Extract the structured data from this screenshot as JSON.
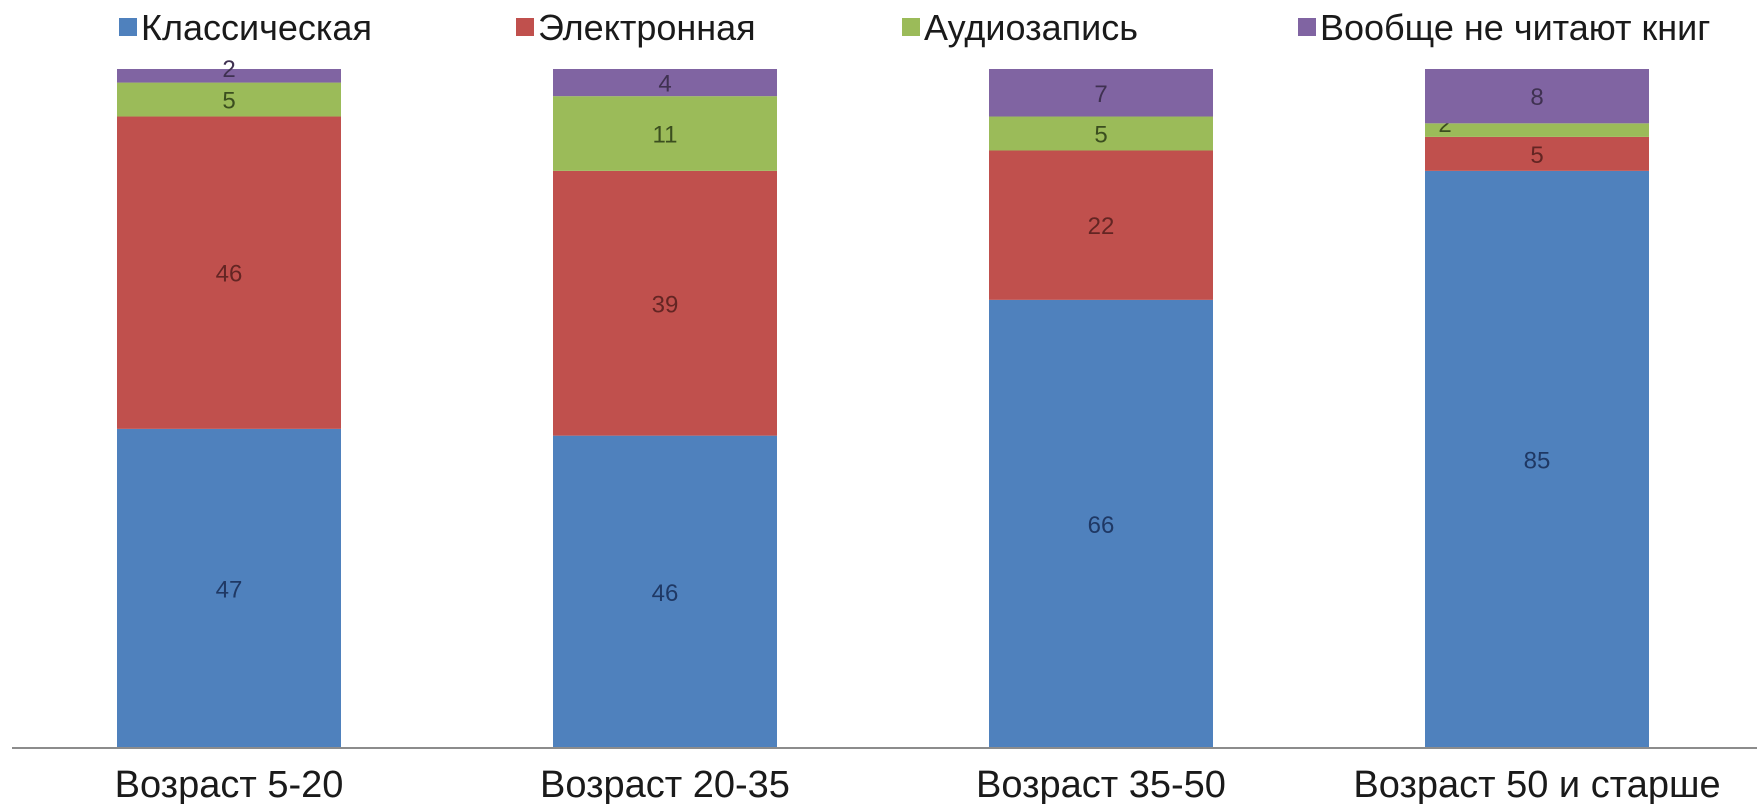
{
  "chart_data": {
    "type": "bar",
    "stacked": true,
    "percent_stacked": true,
    "categories": [
      "Возраст 5-20",
      "Возраст 20-35",
      "Возраст 35-50",
      "Возраст 50 и старше"
    ],
    "series": [
      {
        "name": "Классическая",
        "values": [
          47,
          46,
          66,
          85
        ],
        "color": "#4f81bd",
        "label_color": "#1f3864"
      },
      {
        "name": "Электронная",
        "values": [
          46,
          39,
          22,
          5
        ],
        "color": "#c0504d",
        "label_color": "#632523"
      },
      {
        "name": "Аудиозапись",
        "values": [
          5,
          11,
          5,
          2
        ],
        "color": "#9bbb59",
        "label_color": "#3b4e1f"
      },
      {
        "name": "Вообще не читают книг",
        "values": [
          2,
          4,
          7,
          8
        ],
        "color": "#8064a2",
        "label_color": "#3f3151"
      }
    ],
    "ylim": [
      0,
      100
    ],
    "grid": false,
    "legend_position": "top"
  }
}
